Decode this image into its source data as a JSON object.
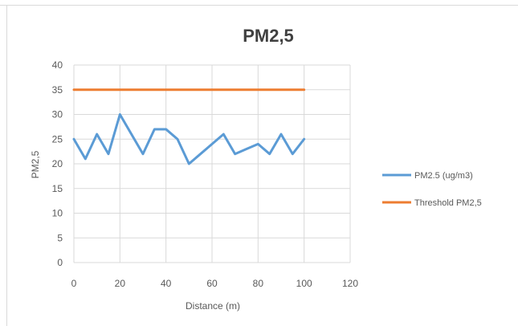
{
  "chart_data": {
    "type": "line",
    "title": "PM2,5",
    "xlabel": "Distance (m)",
    "ylabel": "PM2,5",
    "xlim": [
      0,
      120
    ],
    "ylim": [
      0,
      40
    ],
    "xticks": [
      0,
      20,
      40,
      60,
      80,
      100,
      120
    ],
    "yticks": [
      0,
      5,
      10,
      15,
      20,
      25,
      30,
      35,
      40
    ],
    "grid": true,
    "legend_position": "right",
    "series": [
      {
        "name": "PM2.5 (ug/m3)",
        "color": "#5b9bd5",
        "x": [
          0,
          5,
          10,
          15,
          20,
          25,
          30,
          35,
          40,
          45,
          50,
          55,
          60,
          65,
          70,
          75,
          80,
          85,
          90,
          95,
          100
        ],
        "y": [
          25,
          21,
          26,
          22,
          30,
          26,
          22,
          27,
          27,
          25,
          20,
          22,
          24,
          26,
          22,
          23,
          24,
          22,
          26,
          22,
          25
        ]
      },
      {
        "name": "Threshold PM2,5",
        "color": "#ed7d31",
        "x": [
          0,
          100
        ],
        "y": [
          35,
          35
        ]
      }
    ]
  }
}
